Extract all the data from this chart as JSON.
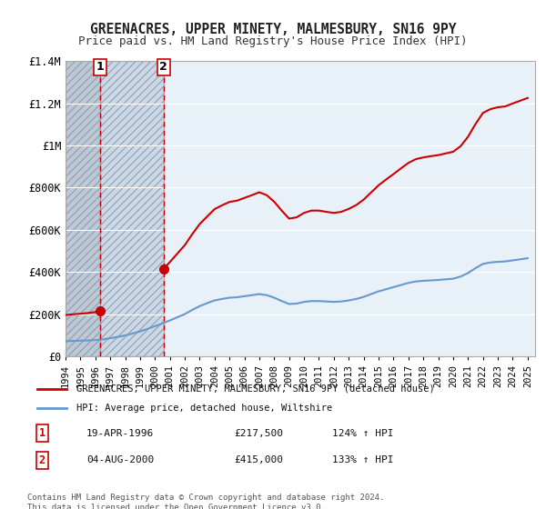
{
  "title": "GREENACRES, UPPER MINETY, MALMESBURY, SN16 9PY",
  "subtitle": "Price paid vs. HM Land Registry's House Price Index (HPI)",
  "legend_property": "GREENACRES, UPPER MINETY, MALMESBURY, SN16 9PY (detached house)",
  "legend_hpi": "HPI: Average price, detached house, Wiltshire",
  "sale1_label": "1",
  "sale1_date": "19-APR-1996",
  "sale1_price": 217500,
  "sale1_pct": "124%",
  "sale2_label": "2",
  "sale2_date": "04-AUG-2000",
  "sale2_price": 415000,
  "sale2_pct": "133%",
  "footer": "Contains HM Land Registry data © Crown copyright and database right 2024.\nThis data is licensed under the Open Government Licence v3.0.",
  "property_color": "#cc0000",
  "hpi_color": "#6699cc",
  "sale_dot_color": "#cc0000",
  "dashed_line_color": "#cc0000",
  "background_plot": "#e8f0f8",
  "background_hatched": "#c8d0d8",
  "ylim": [
    0,
    1400000
  ],
  "yticks": [
    0,
    200000,
    400000,
    600000,
    800000,
    1000000,
    1200000,
    1400000
  ],
  "ytick_labels": [
    "£0",
    "£200K",
    "£400K",
    "£600K",
    "£800K",
    "£1M",
    "£1.2M",
    "£1.4M"
  ],
  "xmin": 1994.0,
  "xmax": 2025.5,
  "sale1_x": 1996.3,
  "sale2_x": 2000.58,
  "hpi_years": [
    1994.0,
    1994.5,
    1995.0,
    1995.5,
    1996.0,
    1996.3,
    1996.5,
    1997.0,
    1997.5,
    1998.0,
    1998.5,
    1999.0,
    1999.5,
    2000.0,
    2000.58,
    2001.0,
    2001.5,
    2002.0,
    2002.5,
    2003.0,
    2003.5,
    2004.0,
    2004.5,
    2005.0,
    2005.5,
    2006.0,
    2006.5,
    2007.0,
    2007.5,
    2008.0,
    2008.5,
    2009.0,
    2009.5,
    2010.0,
    2010.5,
    2011.0,
    2011.5,
    2012.0,
    2012.5,
    2013.0,
    2013.5,
    2014.0,
    2014.5,
    2015.0,
    2015.5,
    2016.0,
    2016.5,
    2017.0,
    2017.5,
    2018.0,
    2018.5,
    2019.0,
    2019.5,
    2020.0,
    2020.5,
    2021.0,
    2021.5,
    2022.0,
    2022.5,
    2023.0,
    2023.5,
    2024.0,
    2024.5,
    2025.0
  ],
  "hpi_values": [
    72000,
    73000,
    74000,
    75000,
    77000,
    78000,
    80000,
    86000,
    92000,
    99000,
    108000,
    118000,
    130000,
    143000,
    158000,
    170000,
    185000,
    200000,
    220000,
    238000,
    252000,
    265000,
    272000,
    278000,
    280000,
    285000,
    290000,
    295000,
    290000,
    278000,
    262000,
    248000,
    250000,
    258000,
    262000,
    262000,
    260000,
    258000,
    260000,
    265000,
    272000,
    282000,
    295000,
    308000,
    318000,
    328000,
    338000,
    348000,
    355000,
    358000,
    360000,
    362000,
    365000,
    368000,
    378000,
    395000,
    418000,
    438000,
    445000,
    448000,
    450000,
    455000,
    460000,
    465000
  ],
  "prop_hpi_years_1": [
    1994.0,
    1994.5,
    1995.0,
    1995.5,
    1996.0,
    1996.3
  ],
  "prop_hpi_values_1": [
    196000,
    199000,
    202000,
    205000,
    210000,
    217500
  ],
  "prop_hpi_years_2": [
    2000.58,
    2001.0,
    2001.5,
    2002.0,
    2002.5,
    2003.0,
    2003.5,
    2004.0,
    2004.5,
    2005.0,
    2005.5,
    2006.0,
    2006.5,
    2007.0,
    2007.5,
    2008.0,
    2008.5,
    2009.0,
    2009.5,
    2010.0,
    2010.5,
    2011.0,
    2011.5,
    2012.0,
    2012.5,
    2013.0,
    2013.5,
    2014.0,
    2014.5,
    2015.0,
    2015.5,
    2016.0,
    2016.5,
    2017.0,
    2017.5,
    2018.0,
    2018.5,
    2019.0,
    2019.5,
    2020.0,
    2020.5,
    2021.0,
    2021.5,
    2022.0,
    2022.5,
    2023.0,
    2023.5,
    2024.0,
    2024.5,
    2025.0
  ],
  "prop_hpi_values_2": [
    415000,
    447000,
    487000,
    527000,
    579000,
    627000,
    663000,
    698000,
    716000,
    732000,
    738000,
    751000,
    764000,
    778000,
    764000,
    733000,
    691000,
    653000,
    659000,
    680000,
    691000,
    691000,
    685000,
    680000,
    685000,
    699000,
    717000,
    743000,
    777000,
    811000,
    838000,
    864000,
    891000,
    917000,
    935000,
    943000,
    949000,
    954000,
    962000,
    970000,
    996000,
    1041000,
    1101000,
    1154000,
    1172000,
    1181000,
    1185000,
    1199000,
    1212000,
    1225000
  ]
}
